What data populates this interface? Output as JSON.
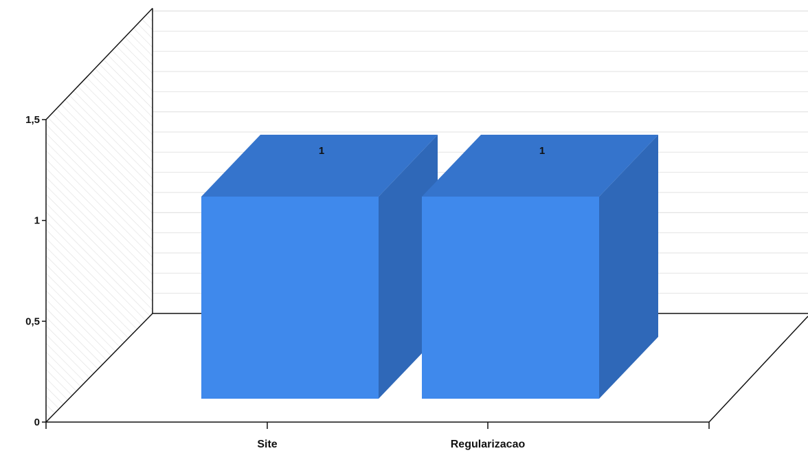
{
  "chart_data": {
    "type": "bar",
    "style": "3d",
    "categories": [
      "Site",
      "Regularizacao"
    ],
    "values": [
      1,
      1
    ],
    "data_labels": [
      "1",
      "1"
    ],
    "ylim": [
      0,
      1.5
    ],
    "y_ticks": [
      {
        "value": 0,
        "label": "0"
      },
      {
        "value": 0.5,
        "label": "0,5"
      },
      {
        "value": 1,
        "label": "1"
      },
      {
        "value": 1.5,
        "label": "1,5"
      }
    ],
    "grid": true,
    "colors": {
      "bar_front": "#3f89ec",
      "bar_top": "#3574cc",
      "bar_side": "#2f68b8",
      "axis": "#111111",
      "grid": "#e0e0e0",
      "wall_hatch": "#dedede"
    }
  }
}
